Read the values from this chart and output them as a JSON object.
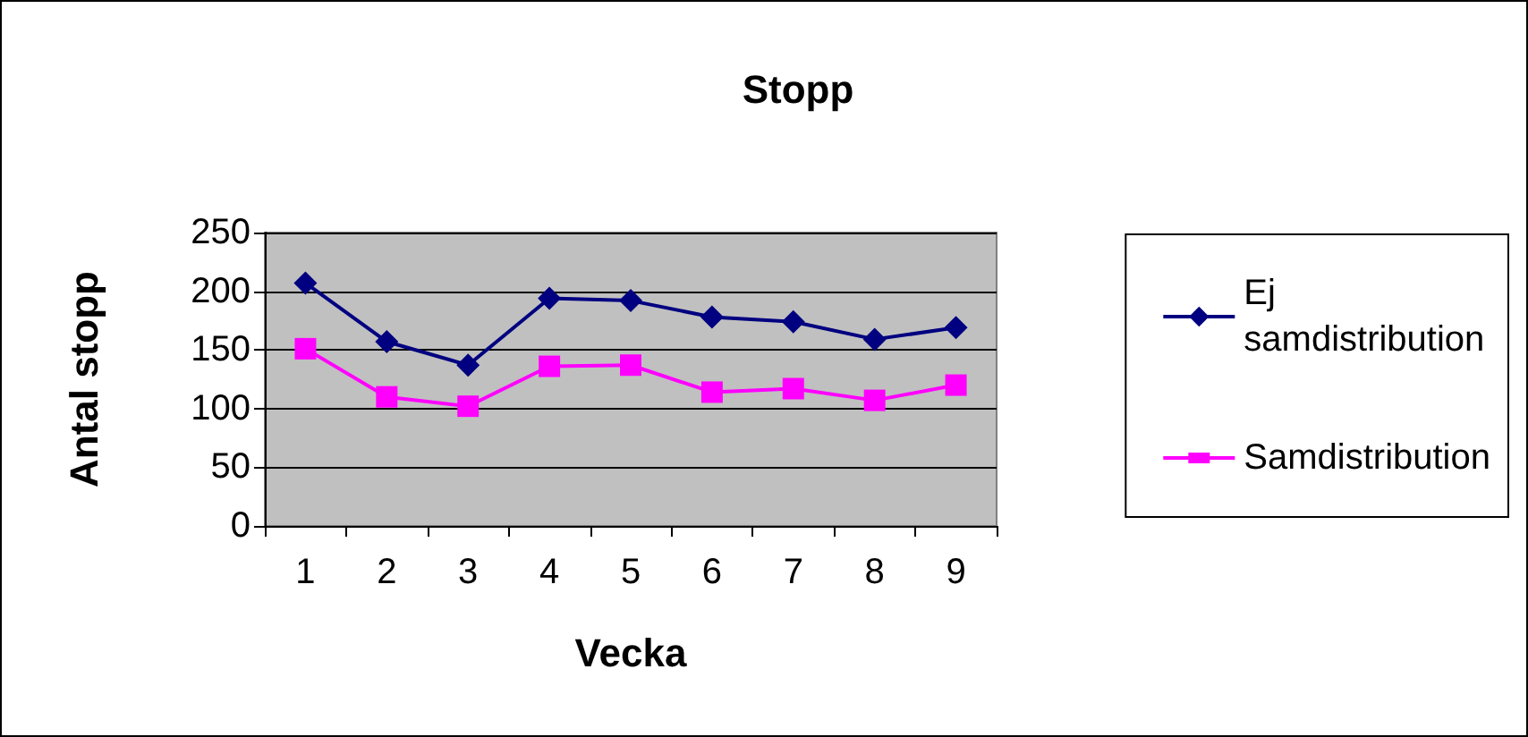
{
  "chart_data": {
    "type": "line",
    "title": "Stopp",
    "xlabel": "Vecka",
    "ylabel": "Antal stopp",
    "categories": [
      "1",
      "2",
      "3",
      "4",
      "5",
      "6",
      "7",
      "8",
      "9"
    ],
    "series": [
      {
        "name": "Ej samdistribution",
        "color": "#000080",
        "marker": "diamond",
        "values": [
          207,
          157,
          137,
          194,
          192,
          178,
          174,
          159,
          169
        ]
      },
      {
        "name": "Samdistribution",
        "color": "#ff00ff",
        "marker": "square",
        "values": [
          151,
          110,
          102,
          136,
          137,
          114,
          117,
          107,
          120
        ]
      }
    ],
    "ylim": [
      0,
      250
    ],
    "yticks": [
      0,
      50,
      100,
      150,
      200,
      250
    ],
    "grid": "y",
    "legend": "right"
  }
}
